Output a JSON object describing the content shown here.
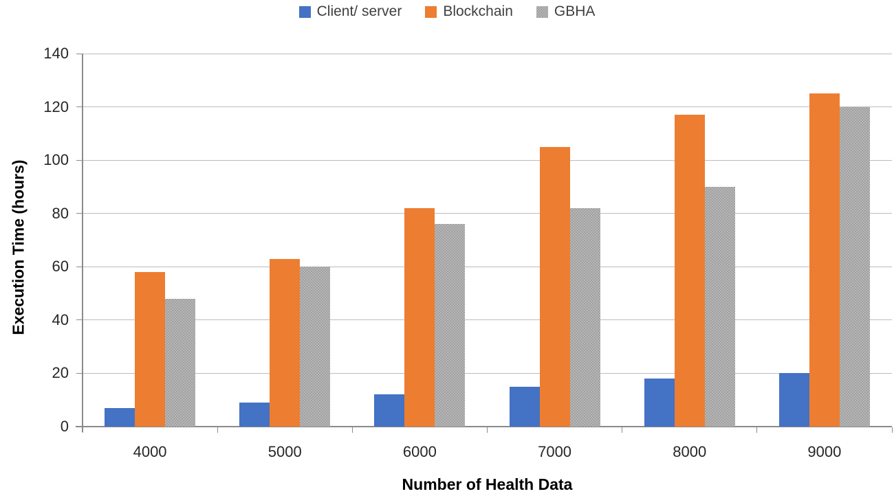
{
  "chart_data": {
    "type": "bar",
    "title": "",
    "categories": [
      "4000",
      "5000",
      "6000",
      "7000",
      "8000",
      "9000"
    ],
    "series": [
      {
        "name": "Client/ server",
        "color": "#4472C4",
        "pattern": false,
        "values": [
          7,
          9,
          12,
          15,
          18,
          20
        ]
      },
      {
        "name": "Blockchain",
        "color": "#ED7D31",
        "pattern": false,
        "values": [
          58,
          63,
          82,
          105,
          117,
          125
        ]
      },
      {
        "name": "GBHA",
        "color": "#ABABAB",
        "pattern": true,
        "values": [
          48,
          60,
          76,
          82,
          90,
          120
        ]
      }
    ],
    "xlabel": "Number of Health Data",
    "ylabel": "Execution Time (hours)",
    "ylim": [
      0,
      140
    ],
    "ytick_step": 20,
    "yticks": [
      "0",
      "20",
      "40",
      "60",
      "80",
      "100",
      "120",
      "140"
    ],
    "legend_position": "top",
    "grid": "horizontal",
    "colors": {
      "gridline": "#BCBCBC",
      "axis_line": "#8A8A8A",
      "tick_text": "#262626"
    }
  }
}
